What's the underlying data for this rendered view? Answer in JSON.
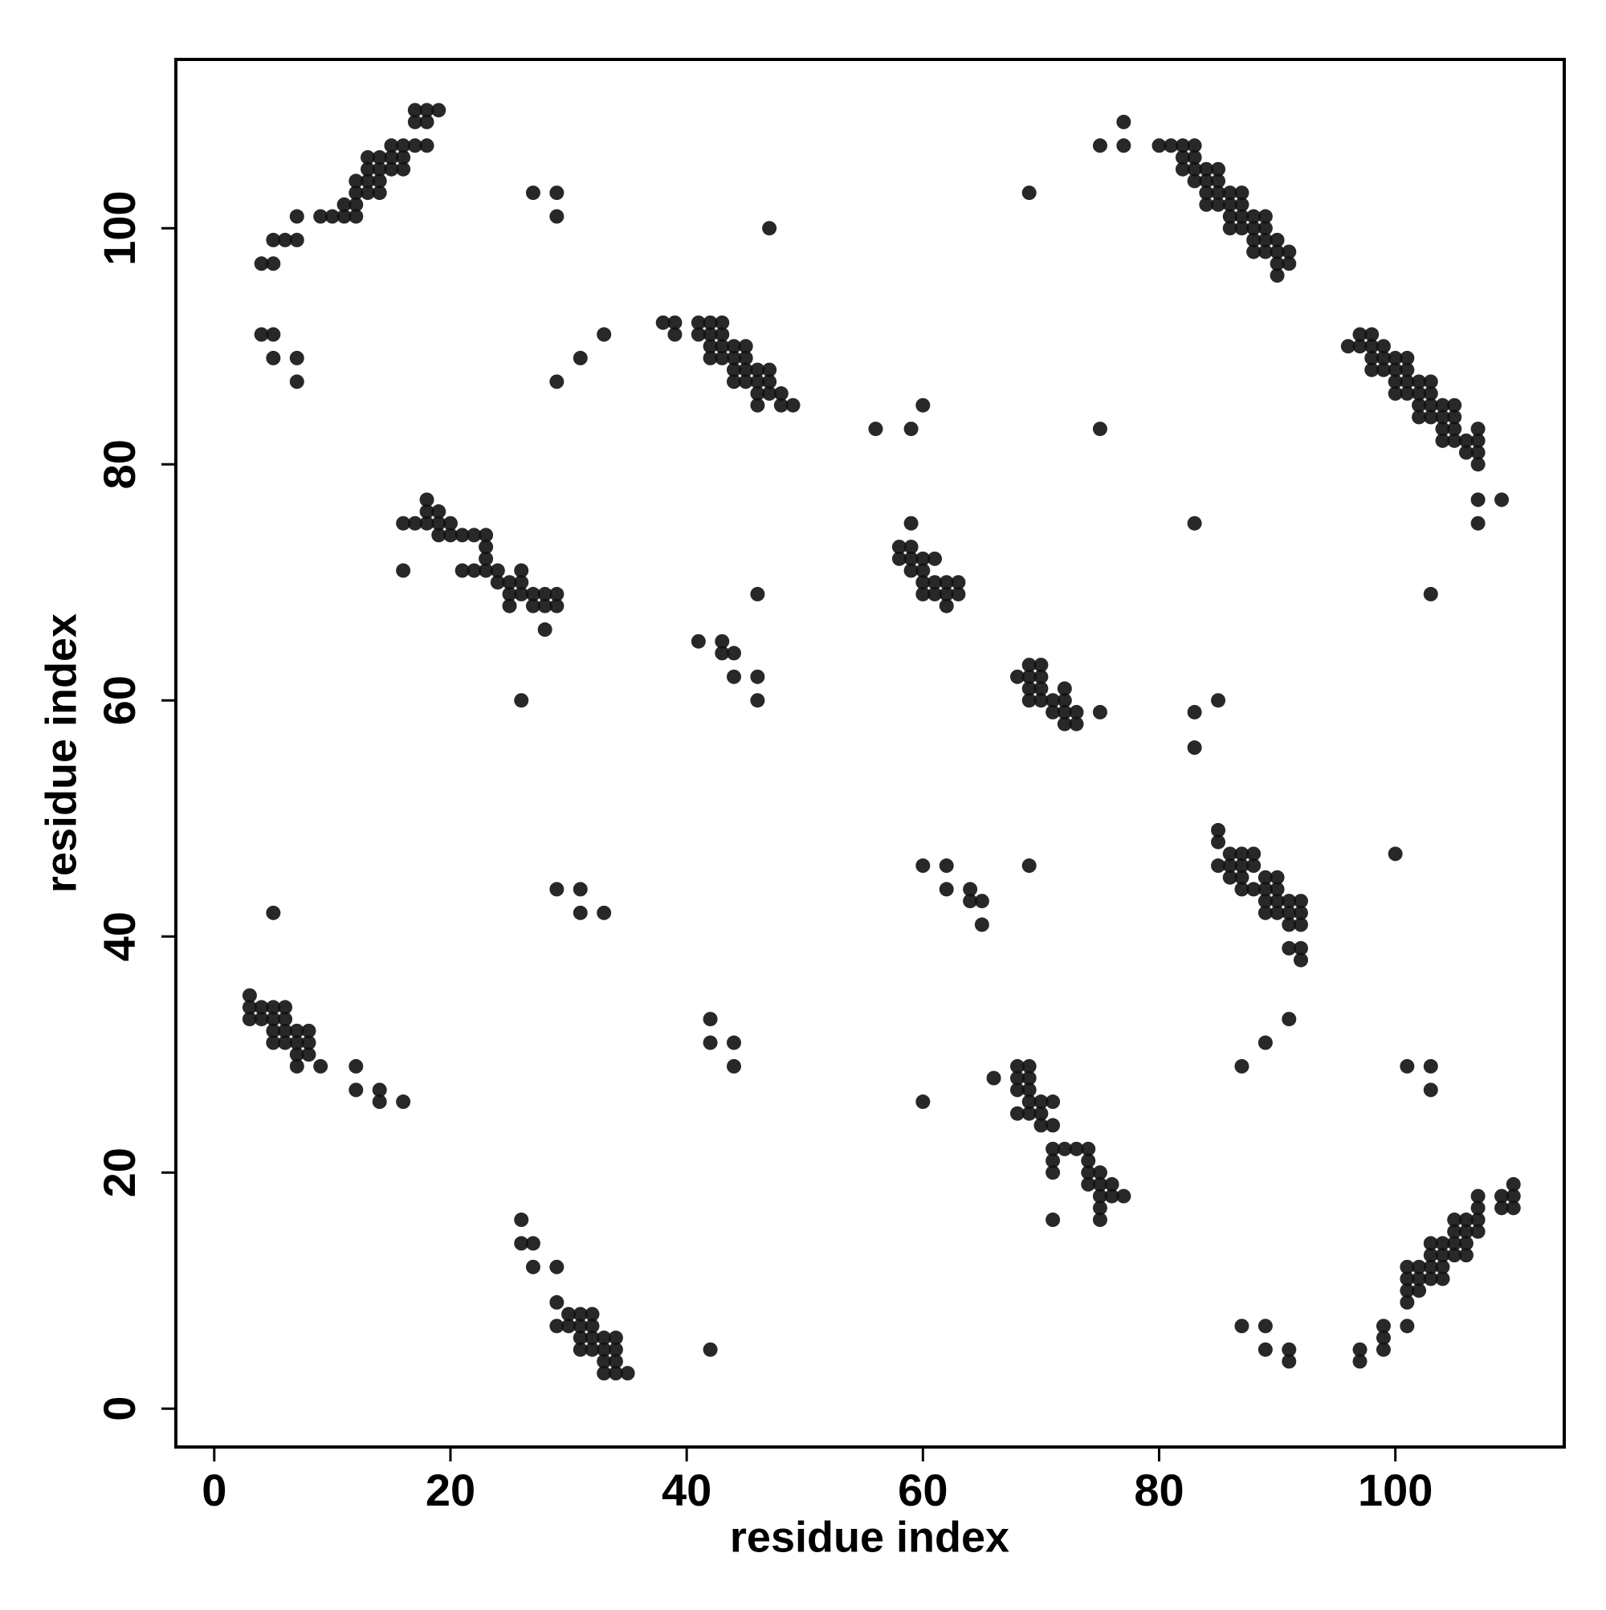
{
  "chart_data": {
    "type": "scatter",
    "xlabel": "residue index",
    "ylabel": "residue index",
    "color": "#111111",
    "xlim": [
      -3.25,
      114.3
    ],
    "ylim": [
      -3.25,
      114.3
    ],
    "xticks": [
      0,
      20,
      40,
      60,
      80,
      100
    ],
    "yticks": [
      0,
      20,
      40,
      60,
      80,
      100
    ],
    "x": [
      4,
      5,
      5,
      6,
      7,
      7,
      9,
      10,
      11,
      11,
      12,
      12,
      12,
      13,
      13,
      12,
      13,
      14,
      14,
      14,
      14,
      13,
      15,
      15,
      15,
      16,
      16,
      16,
      17,
      17,
      17,
      18,
      18,
      18,
      19,
      4,
      5,
      5,
      7,
      7,
      27,
      29,
      29,
      47,
      29,
      31,
      33,
      38,
      39,
      39,
      41,
      41,
      42,
      42,
      42,
      43,
      43,
      43,
      42,
      43,
      44,
      44,
      44,
      44,
      45,
      45,
      45,
      45,
      46,
      46,
      46,
      46,
      47,
      47,
      47,
      48,
      48,
      49,
      56,
      59,
      60,
      75,
      75,
      77,
      77,
      80,
      81,
      82,
      82,
      83,
      83,
      83,
      82,
      83,
      84,
      84,
      84,
      84,
      85,
      85,
      85,
      85,
      86,
      86,
      86,
      86,
      87,
      87,
      87,
      87,
      88,
      88,
      88,
      88,
      89,
      89,
      89,
      89,
      90,
      90,
      90,
      90,
      91,
      91,
      69,
      96,
      97,
      97,
      98,
      98,
      98,
      98,
      99,
      99,
      99,
      100,
      100,
      100,
      100,
      101,
      101,
      101,
      101,
      102,
      102,
      102,
      102,
      103,
      103,
      103,
      103,
      104,
      104,
      104,
      104,
      105,
      105,
      105,
      105,
      106,
      106,
      107,
      107,
      107,
      107,
      107,
      109,
      107,
      83,
      103,
      16,
      17,
      18,
      18,
      18,
      19,
      19,
      19,
      20,
      20,
      21,
      21,
      22,
      22,
      23,
      23,
      23,
      23,
      24,
      24,
      25,
      25,
      25,
      26,
      26,
      26,
      27,
      27,
      28,
      28,
      28,
      29,
      29,
      16,
      26,
      58,
      58,
      59,
      59,
      59,
      59,
      60,
      60,
      60,
      60,
      61,
      61,
      61,
      62,
      62,
      62,
      63,
      63,
      41,
      43,
      43,
      44,
      44,
      46,
      46,
      46,
      68,
      69,
      69,
      69,
      69,
      70,
      70,
      70,
      70,
      71,
      71,
      72,
      72,
      72,
      72,
      73,
      73,
      75,
      83,
      83,
      85,
      85,
      85,
      85,
      86,
      86,
      86,
      87,
      87,
      87,
      87,
      88,
      88,
      88,
      89,
      89,
      89,
      89,
      90,
      90,
      90,
      90,
      91,
      91,
      91,
      91,
      92,
      92,
      92,
      92,
      92,
      100,
      60,
      62,
      62,
      64,
      64,
      65,
      65,
      69,
      5,
      29,
      31,
      31,
      33,
      3,
      3,
      3,
      4,
      4,
      5,
      5,
      5,
      5,
      6,
      6,
      6,
      6,
      7,
      7,
      7,
      7,
      8,
      8,
      8,
      9,
      12,
      12,
      14,
      14,
      16,
      42,
      42,
      44,
      44,
      60,
      87,
      89,
      91,
      101,
      103,
      103,
      66,
      68,
      68,
      68,
      68,
      69,
      69,
      69,
      69,
      69,
      70,
      70,
      70,
      71,
      71,
      71,
      71,
      71,
      72,
      73,
      74,
      74,
      74,
      74,
      75,
      75,
      75,
      75,
      75,
      76,
      76,
      77,
      71,
      26,
      26,
      27,
      27,
      29,
      29,
      29,
      30,
      30,
      31,
      31,
      31,
      31,
      32,
      32,
      32,
      32,
      33,
      33,
      33,
      33,
      34,
      34,
      34,
      34,
      35,
      42,
      87,
      89,
      89,
      91,
      91,
      97,
      97,
      99,
      99,
      99,
      101,
      101,
      101,
      101,
      101,
      102,
      102,
      102,
      103,
      103,
      103,
      103,
      104,
      104,
      104,
      104,
      105,
      105,
      105,
      105,
      106,
      106,
      106,
      106,
      107,
      107,
      107,
      107,
      109,
      109,
      110,
      110,
      110
    ],
    "values": [
      97,
      97,
      99,
      99,
      99,
      101,
      101,
      101,
      101,
      102,
      101,
      102,
      103,
      103,
      104,
      104,
      105,
      103,
      104,
      105,
      106,
      106,
      105,
      106,
      107,
      105,
      106,
      107,
      107,
      109,
      110,
      107,
      109,
      110,
      110,
      91,
      91,
      89,
      89,
      87,
      103,
      103,
      101,
      100,
      87,
      89,
      91,
      92,
      92,
      91,
      92,
      91,
      92,
      91,
      90,
      92,
      91,
      90,
      89,
      89,
      90,
      89,
      88,
      87,
      90,
      89,
      88,
      87,
      88,
      87,
      86,
      85,
      88,
      87,
      86,
      86,
      85,
      85,
      83,
      83,
      85,
      83,
      107,
      107,
      109,
      107,
      107,
      107,
      106,
      107,
      106,
      105,
      105,
      104,
      105,
      104,
      103,
      102,
      105,
      104,
      103,
      102,
      103,
      102,
      101,
      100,
      103,
      102,
      101,
      100,
      101,
      100,
      99,
      98,
      101,
      100,
      99,
      98,
      99,
      98,
      97,
      96,
      98,
      97,
      103,
      90,
      91,
      90,
      91,
      90,
      89,
      88,
      90,
      89,
      88,
      89,
      88,
      87,
      86,
      89,
      88,
      87,
      86,
      87,
      86,
      85,
      84,
      87,
      86,
      85,
      84,
      85,
      84,
      83,
      82,
      85,
      84,
      83,
      82,
      82,
      81,
      83,
      82,
      81,
      80,
      77,
      77,
      75,
      75,
      69,
      75,
      75,
      77,
      76,
      75,
      76,
      75,
      74,
      75,
      74,
      74,
      71,
      74,
      71,
      74,
      73,
      72,
      71,
      71,
      70,
      70,
      69,
      68,
      71,
      70,
      69,
      69,
      68,
      69,
      68,
      66,
      69,
      68,
      71,
      60,
      73,
      72,
      75,
      73,
      72,
      71,
      72,
      71,
      70,
      69,
      72,
      70,
      69,
      70,
      69,
      68,
      70,
      69,
      65,
      65,
      64,
      64,
      62,
      69,
      62,
      60,
      62,
      63,
      62,
      61,
      60,
      63,
      62,
      61,
      60,
      60,
      59,
      61,
      60,
      59,
      58,
      59,
      58,
      59,
      59,
      56,
      60,
      49,
      48,
      46,
      47,
      46,
      45,
      47,
      46,
      45,
      44,
      47,
      46,
      44,
      45,
      44,
      43,
      42,
      45,
      44,
      43,
      42,
      43,
      42,
      41,
      39,
      43,
      42,
      41,
      39,
      38,
      47,
      46,
      46,
      44,
      44,
      43,
      43,
      41,
      46,
      42,
      44,
      44,
      42,
      42,
      35,
      34,
      33,
      34,
      33,
      34,
      33,
      32,
      31,
      34,
      33,
      32,
      31,
      32,
      31,
      30,
      29,
      32,
      31,
      30,
      29,
      29,
      27,
      27,
      26,
      26,
      33,
      31,
      31,
      29,
      26,
      29,
      31,
      33,
      29,
      29,
      27,
      28,
      29,
      28,
      27,
      25,
      29,
      28,
      27,
      26,
      25,
      26,
      25,
      24,
      26,
      24,
      22,
      21,
      20,
      22,
      22,
      22,
      21,
      20,
      19,
      20,
      19,
      18,
      17,
      16,
      19,
      18,
      18,
      16,
      16,
      14,
      14,
      12,
      12,
      9,
      7,
      8,
      7,
      8,
      7,
      6,
      5,
      8,
      7,
      6,
      5,
      6,
      5,
      4,
      3,
      6,
      5,
      4,
      3,
      3,
      5,
      7,
      7,
      5,
      5,
      4,
      5,
      4,
      7,
      6,
      5,
      12,
      11,
      10,
      9,
      7,
      12,
      11,
      10,
      14,
      13,
      12,
      11,
      14,
      13,
      12,
      11,
      16,
      15,
      14,
      13,
      16,
      15,
      14,
      13,
      18,
      17,
      16,
      15,
      18,
      17,
      19,
      18,
      17
    ]
  }
}
